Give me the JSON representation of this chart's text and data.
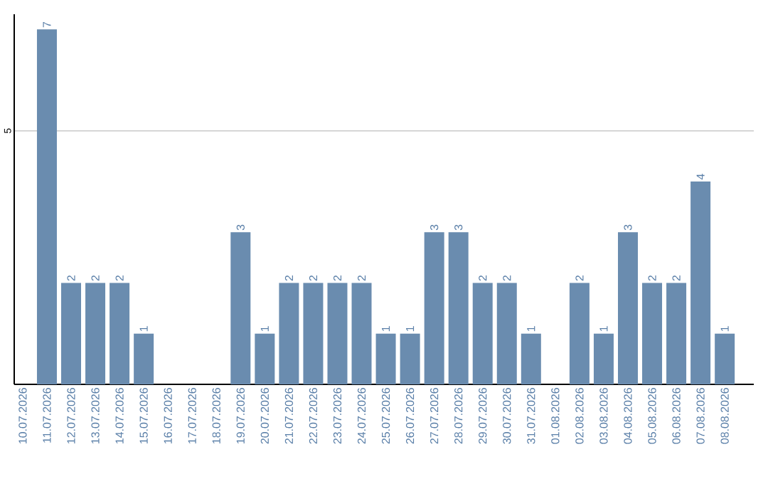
{
  "chart_data": {
    "type": "bar",
    "categories": [
      "10.07.2026",
      "11.07.2026",
      "12.07.2026",
      "13.07.2026",
      "14.07.2026",
      "15.07.2026",
      "16.07.2026",
      "17.07.2026",
      "18.07.2026",
      "19.07.2026",
      "20.07.2026",
      "21.07.2026",
      "22.07.2026",
      "23.07.2026",
      "24.07.2026",
      "25.07.2026",
      "26.07.2026",
      "27.07.2026",
      "28.07.2026",
      "29.07.2026",
      "30.07.2026",
      "31.07.2026",
      "01.08.2026",
      "02.08.2026",
      "03.08.2026",
      "04.08.2026",
      "05.08.2026",
      "06.08.2026",
      "07.08.2026",
      "08.08.2026"
    ],
    "values": [
      0,
      7,
      2,
      2,
      2,
      1,
      0,
      0,
      0,
      3,
      1,
      2,
      2,
      2,
      2,
      1,
      1,
      3,
      3,
      2,
      2,
      1,
      0,
      2,
      1,
      3,
      2,
      2,
      4,
      1
    ],
    "value_labels": [
      null,
      "7",
      "2",
      "2",
      "2",
      "1",
      null,
      null,
      null,
      "3",
      "1",
      "2",
      "2",
      "2",
      "2",
      "1",
      "1",
      "3",
      "3",
      "2",
      "2",
      "1",
      null,
      "2",
      "1",
      "3",
      "2",
      "2",
      "4",
      "1"
    ],
    "color": "#6a8caf",
    "ylim": [
      0,
      7.3
    ],
    "yticks": [
      5
    ],
    "grid": "y"
  }
}
